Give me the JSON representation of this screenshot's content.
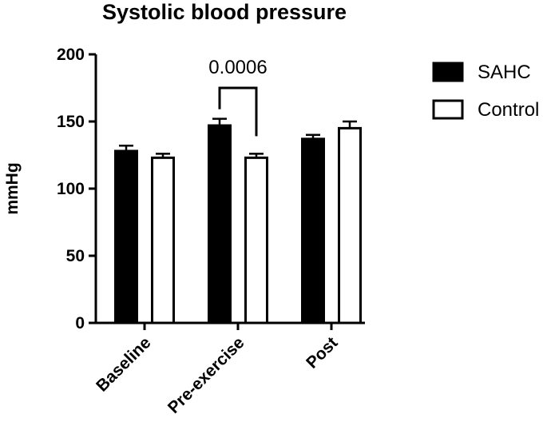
{
  "chart_data": {
    "type": "bar",
    "title": "Systolic blood pressure",
    "xlabel": "",
    "ylabel": "mmHg",
    "ylim": [
      0,
      200
    ],
    "yticks": [
      0,
      50,
      100,
      150,
      200
    ],
    "categories": [
      "Baseline",
      "Pre-exercise",
      "Post"
    ],
    "series": [
      {
        "name": "SAHC",
        "values": [
          128,
          147,
          137
        ],
        "errors": [
          4,
          5,
          3
        ],
        "fill": "#000000"
      },
      {
        "name": "Control",
        "values": [
          123,
          123,
          145
        ],
        "errors": [
          3,
          3,
          5
        ],
        "fill": "#ffffff"
      }
    ],
    "annotations": [
      {
        "text": "0.0006",
        "category": "Pre-exercise",
        "from_series": 0,
        "to_series": 1
      }
    ],
    "legend_position": "top-right",
    "grid": false
  }
}
